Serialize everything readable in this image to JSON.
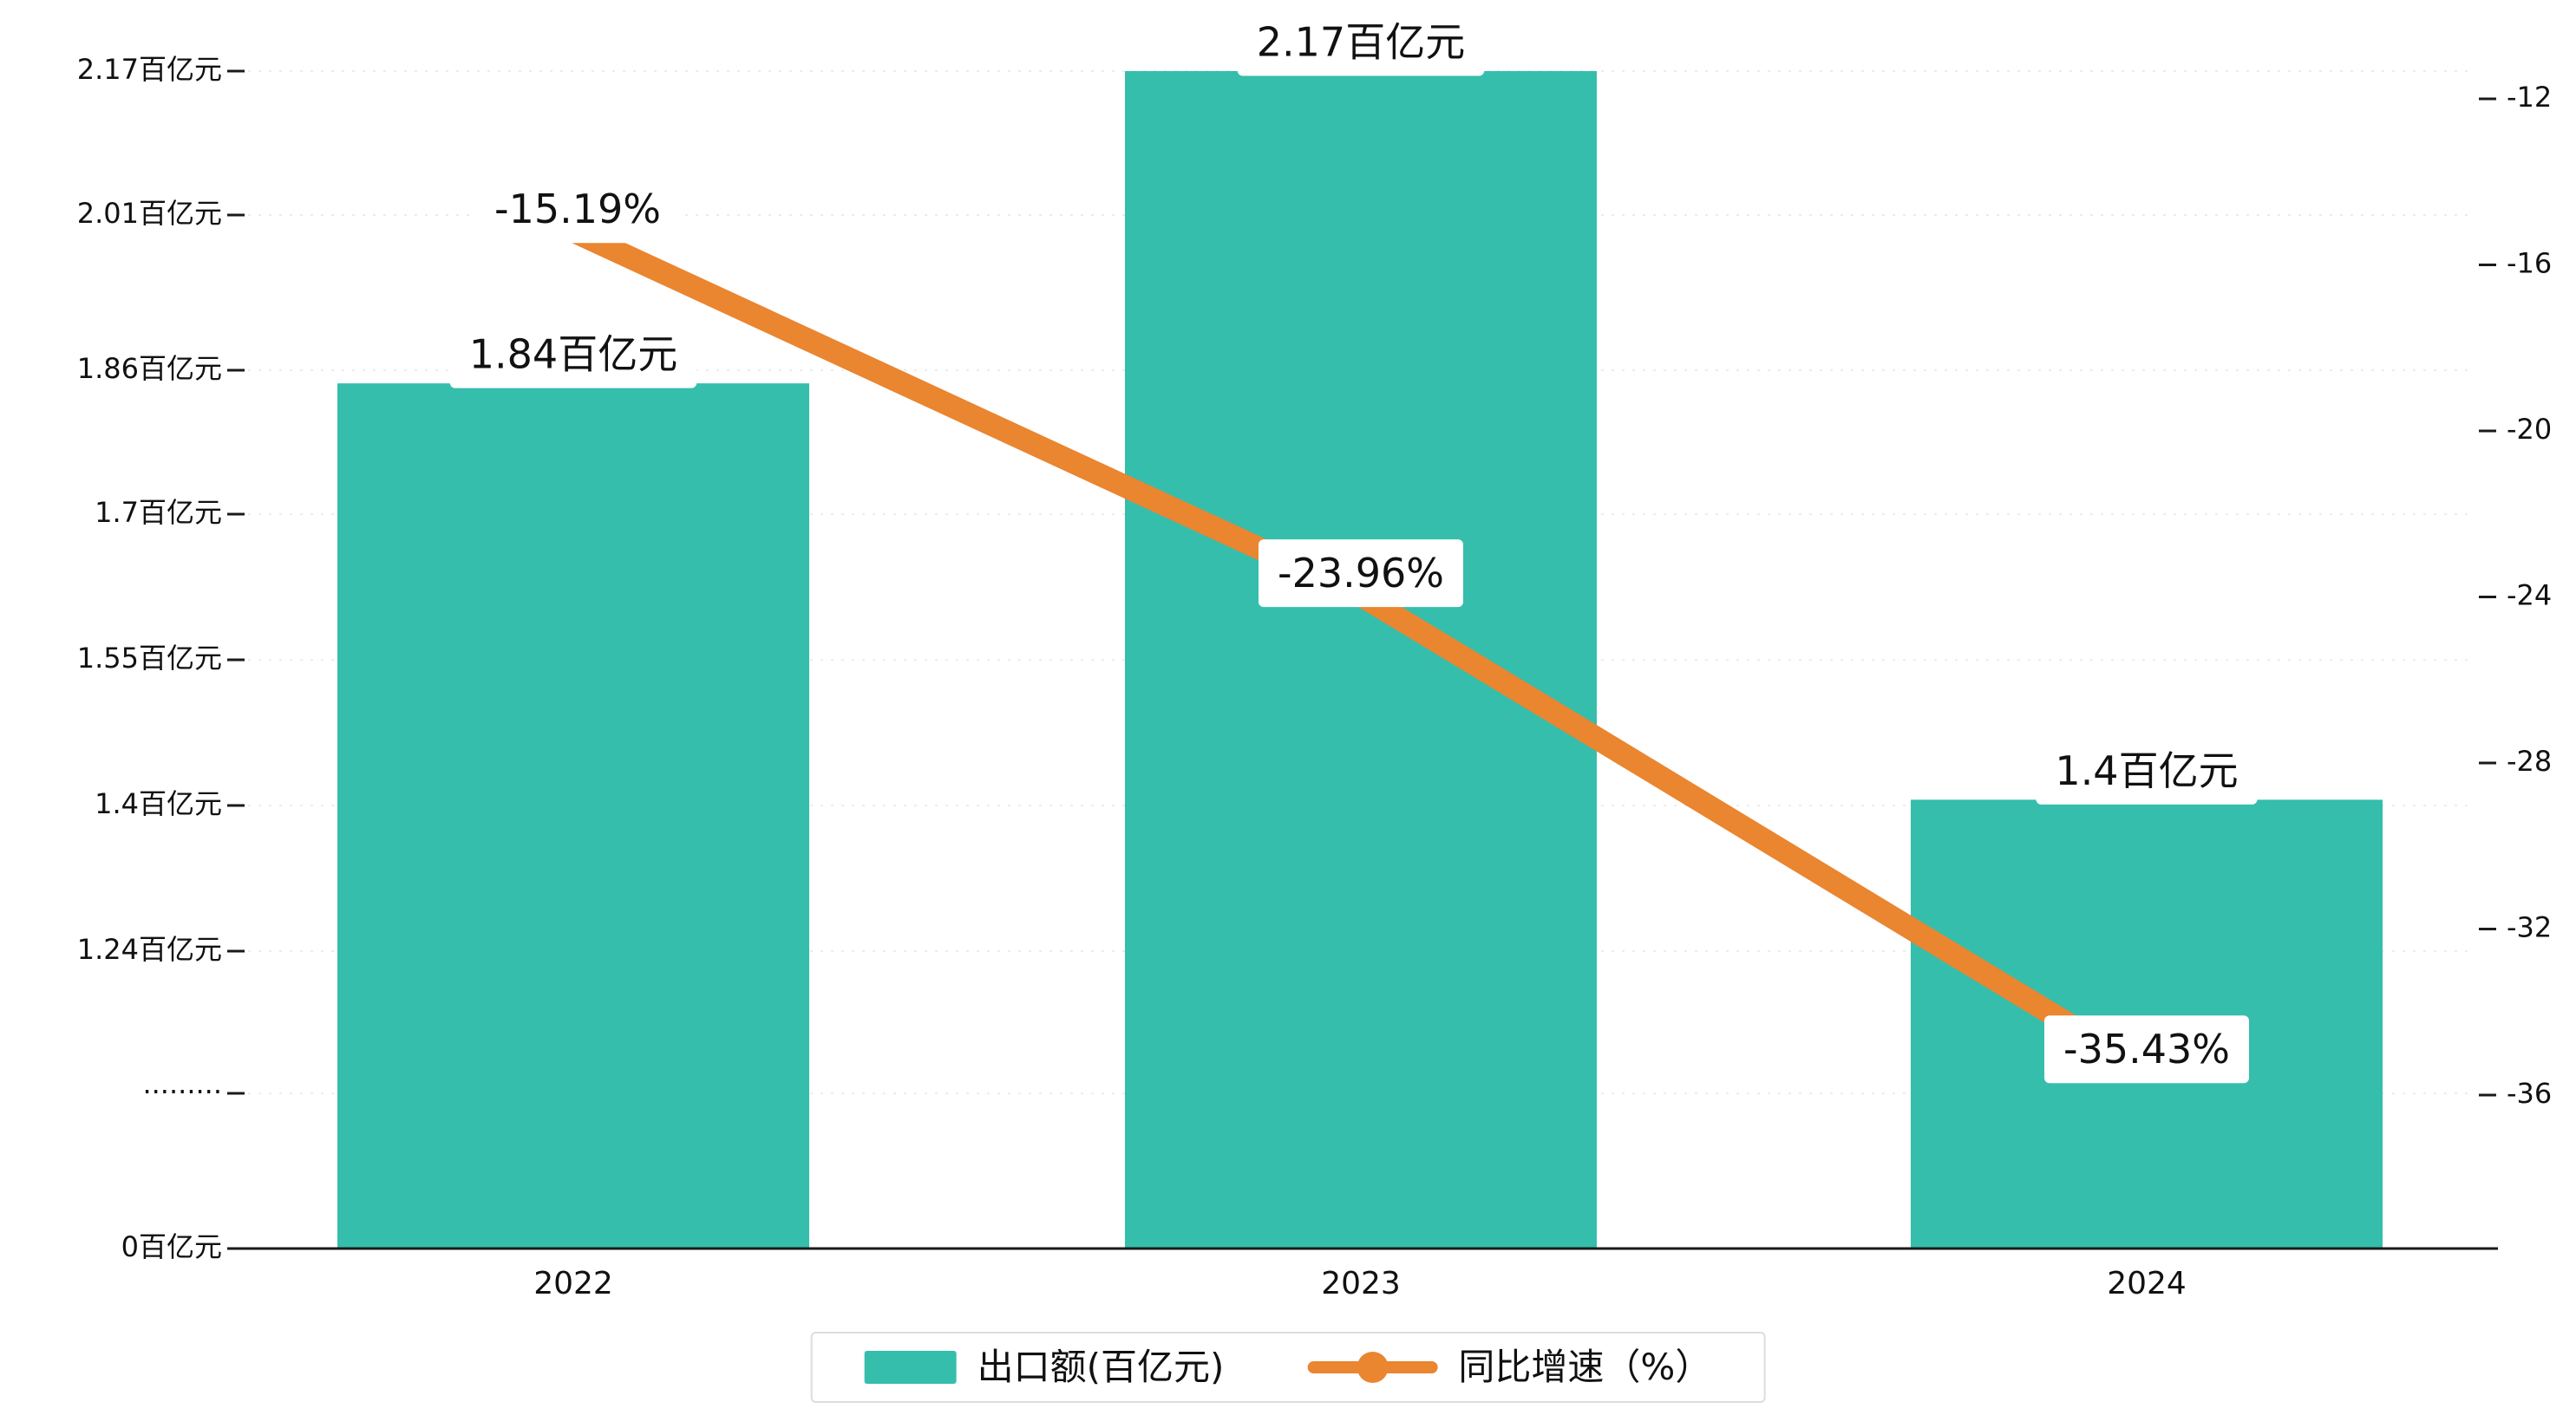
{
  "chart_data": {
    "type": "bar",
    "categories": [
      "2022",
      "2023",
      "2024"
    ],
    "series": [
      {
        "name": "出口额(百亿元)",
        "type": "bar",
        "axis": "left",
        "values": [
          1.84,
          2.17,
          1.4
        ],
        "value_labels": [
          "1.84百亿元",
          "2.17百亿元",
          "1.4百亿元"
        ],
        "color": "#35beac"
      },
      {
        "name": "同比增速（%）",
        "type": "line",
        "axis": "right",
        "values": [
          -15.19,
          -23.96,
          -35.43
        ],
        "value_labels": [
          "-15.19%",
          "-23.96%",
          "-35.43%"
        ],
        "color": "#ea8530"
      }
    ],
    "left_axis": {
      "unit": "百亿元",
      "tick_labels": [
        "0百亿元",
        "·········",
        "1.24百亿元",
        "1.4百亿元",
        "1.55百亿元",
        "1.7百亿元",
        "1.86百亿元",
        "2.01百亿元",
        "2.17百亿元"
      ],
      "tick_values": [
        0,
        null,
        1.24,
        1.4,
        1.55,
        1.7,
        1.86,
        2.01,
        2.17
      ],
      "has_break": true,
      "range": [
        0,
        2.17
      ]
    },
    "right_axis": {
      "tick_labels": [
        "-12",
        "-16",
        "-20",
        "-24",
        "-28",
        "-32",
        "-36"
      ],
      "tick_values": [
        -12,
        -16,
        -20,
        -24,
        -28,
        -32,
        -36
      ],
      "range": [
        -36,
        -12
      ]
    },
    "legend": {
      "items": [
        "出口额(百亿元)",
        "同比增速（%）"
      ],
      "position": "bottom-center"
    },
    "grid": "dashed-horizontal",
    "colors": {
      "bar": "#35beac",
      "line": "#ea8530",
      "text": "#111111",
      "gridline": "#ececec",
      "axis": "#1a1a1a",
      "label_box": "#ffffff"
    }
  }
}
